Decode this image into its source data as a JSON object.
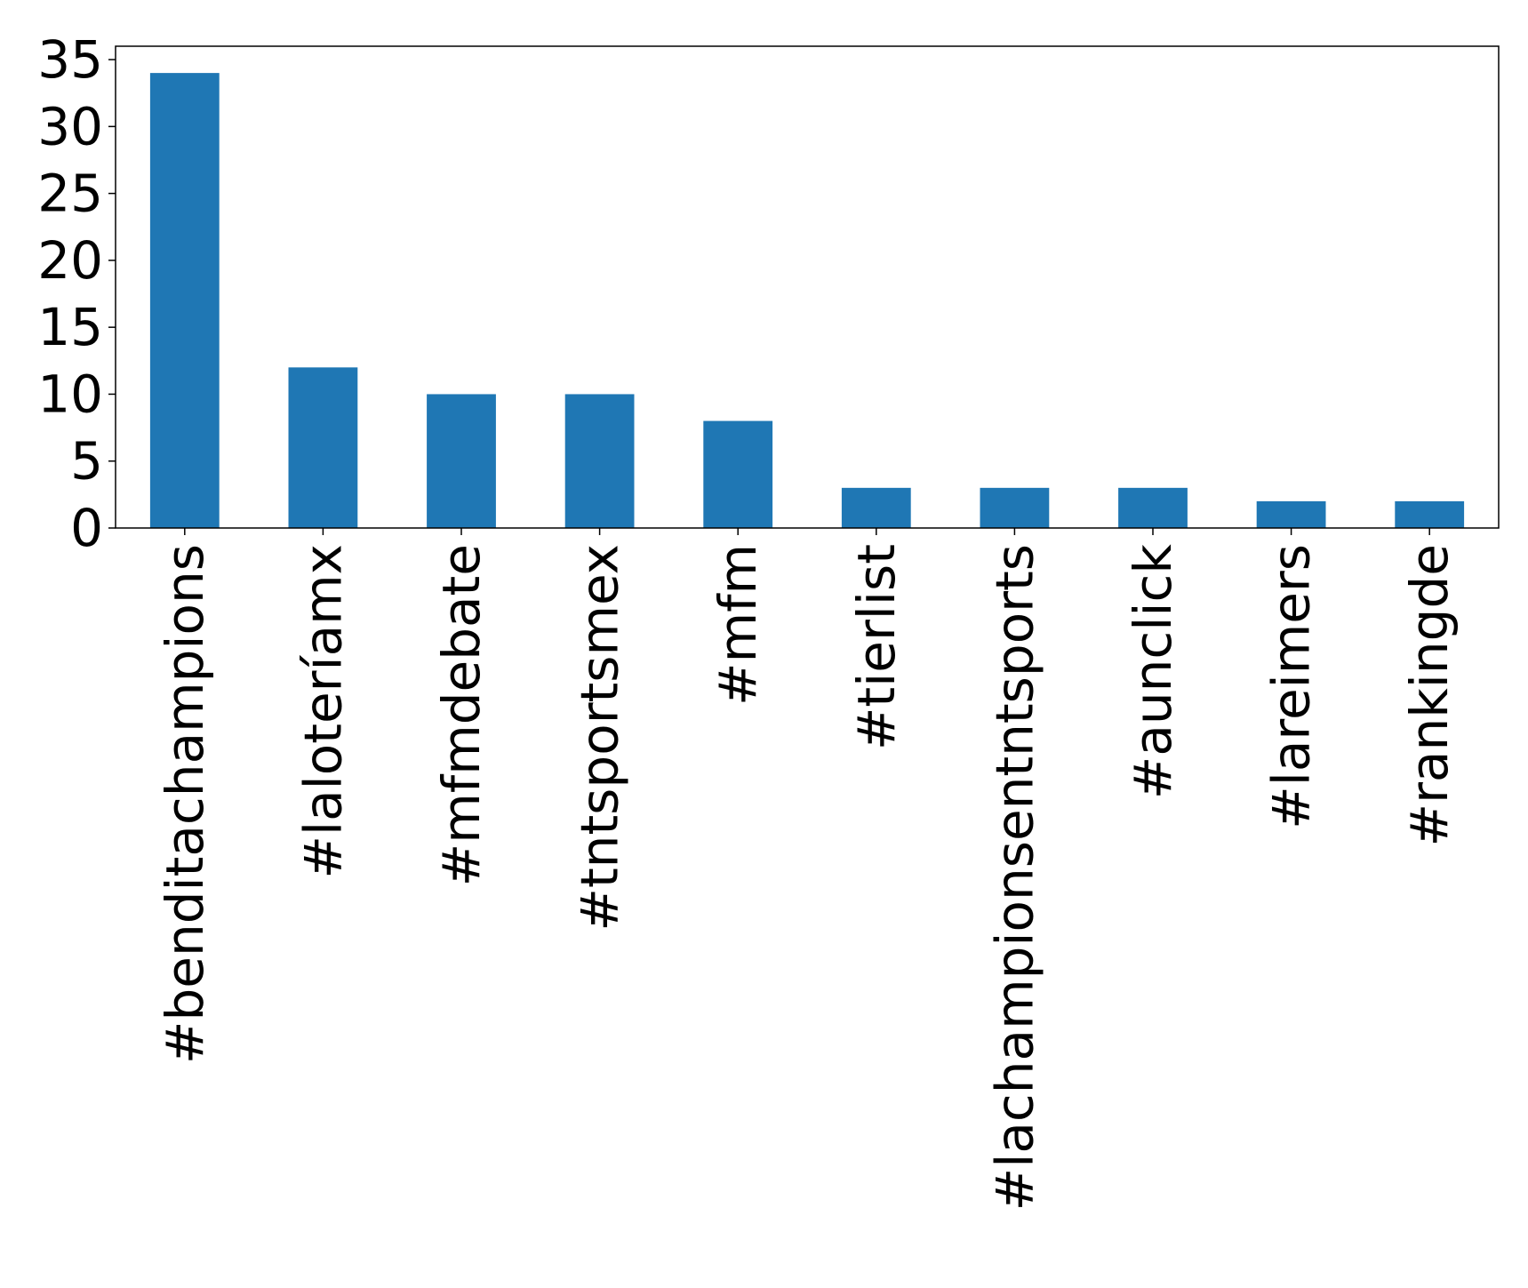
{
  "chart_data": {
    "type": "bar",
    "title": "",
    "xlabel": "",
    "ylabel": "",
    "categories": [
      "#benditachampions",
      "#laloteríamx",
      "#mfmdebate",
      "#tntsportsmex",
      "#mfm",
      "#tierlist",
      "#lachampionsentntsports",
      "#aunclick",
      "#lareimers",
      "#rankingde"
    ],
    "values": [
      34,
      12,
      10,
      10,
      8,
      3,
      3,
      3,
      2,
      2
    ],
    "ylim": [
      0,
      36
    ],
    "yticks": [
      0,
      5,
      10,
      15,
      20,
      25,
      30,
      35
    ],
    "bar_color": "#1f77b4",
    "grid": false,
    "legend": "none"
  }
}
